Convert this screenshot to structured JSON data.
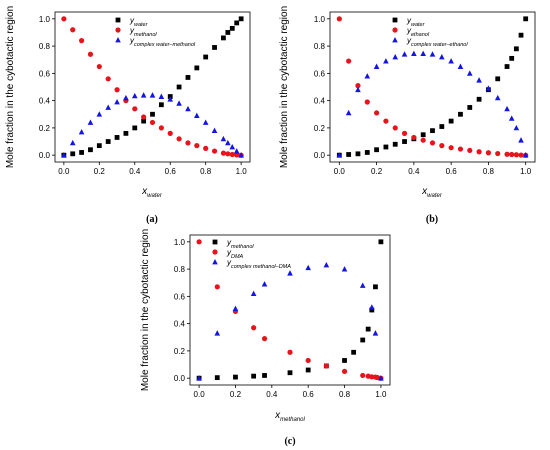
{
  "chart_data": [
    {
      "type": "scatter",
      "panel_label": "(a)",
      "ylabel": "Mole fraction in the cybotactic region",
      "xlabel": {
        "base": "x",
        "sub": "water"
      },
      "xlim": [
        -0.05,
        1.05
      ],
      "ylim": [
        -0.05,
        1.05
      ],
      "xticks": [
        0.0,
        0.2,
        0.4,
        0.6,
        0.8,
        1.0
      ],
      "yticks": [
        0.0,
        0.2,
        0.4,
        0.6,
        0.8,
        1.0
      ],
      "xtick_labels": [
        "0.0",
        "0.2",
        "0.4",
        "0.6",
        "0.8",
        "1.0"
      ],
      "ytick_labels": [
        "0.0",
        "0.2",
        "0.4",
        "0.6",
        "0.8",
        "1.0"
      ],
      "grid": false,
      "legend_placement": "top-center",
      "series": [
        {
          "base": "y",
          "sub": "water",
          "marker": "square",
          "color": "#000000",
          "x": [
            0,
            0.05,
            0.1,
            0.15,
            0.2,
            0.25,
            0.3,
            0.35,
            0.4,
            0.45,
            0.5,
            0.55,
            0.6,
            0.65,
            0.7,
            0.75,
            0.8,
            0.85,
            0.9,
            0.925,
            0.95,
            0.975,
            1.0
          ],
          "y": [
            0,
            0.01,
            0.02,
            0.04,
            0.07,
            0.1,
            0.13,
            0.16,
            0.2,
            0.25,
            0.3,
            0.37,
            0.43,
            0.5,
            0.57,
            0.64,
            0.72,
            0.79,
            0.86,
            0.9,
            0.93,
            0.97,
            1.0
          ]
        },
        {
          "base": "y",
          "sub": "methanol",
          "marker": "circle",
          "color": "#e8141b",
          "x": [
            0,
            0.05,
            0.1,
            0.15,
            0.2,
            0.25,
            0.3,
            0.35,
            0.4,
            0.45,
            0.5,
            0.55,
            0.6,
            0.65,
            0.7,
            0.75,
            0.8,
            0.85,
            0.9,
            0.925,
            0.95,
            0.975,
            1.0
          ],
          "y": [
            1.0,
            0.92,
            0.84,
            0.74,
            0.65,
            0.56,
            0.48,
            0.4,
            0.34,
            0.28,
            0.24,
            0.2,
            0.16,
            0.12,
            0.09,
            0.07,
            0.05,
            0.03,
            0.015,
            0.01,
            0.005,
            0.002,
            0.0
          ]
        },
        {
          "base": "y",
          "sub": "complex water–methanol",
          "marker": "triangle",
          "color": "#1515e3",
          "x": [
            0,
            0.05,
            0.1,
            0.15,
            0.2,
            0.25,
            0.3,
            0.35,
            0.4,
            0.45,
            0.5,
            0.55,
            0.6,
            0.65,
            0.7,
            0.75,
            0.8,
            0.85,
            0.9,
            0.925,
            0.95,
            0.975,
            1.0
          ],
          "y": [
            0,
            0.09,
            0.17,
            0.24,
            0.3,
            0.35,
            0.39,
            0.42,
            0.435,
            0.44,
            0.44,
            0.43,
            0.41,
            0.38,
            0.34,
            0.29,
            0.24,
            0.18,
            0.12,
            0.09,
            0.06,
            0.03,
            0.0
          ]
        }
      ]
    },
    {
      "type": "scatter",
      "panel_label": "(b)",
      "ylabel": "Mole fraction in the cybotactic region",
      "xlabel": {
        "base": "x",
        "sub": "water"
      },
      "xlim": [
        -0.05,
        1.05
      ],
      "ylim": [
        -0.05,
        1.05
      ],
      "xticks": [
        0.0,
        0.2,
        0.4,
        0.6,
        0.8,
        1.0
      ],
      "yticks": [
        0.0,
        0.2,
        0.4,
        0.6,
        0.8,
        1.0
      ],
      "xtick_labels": [
        "0.0",
        "0.2",
        "0.4",
        "0.6",
        "0.8",
        "1.0"
      ],
      "ytick_labels": [
        "0.0",
        "0.2",
        "0.4",
        "0.6",
        "0.8",
        "1.0"
      ],
      "grid": false,
      "legend_placement": "top-center",
      "series": [
        {
          "base": "y",
          "sub": "water",
          "marker": "square",
          "color": "#000000",
          "x": [
            0,
            0.05,
            0.1,
            0.15,
            0.2,
            0.25,
            0.3,
            0.35,
            0.4,
            0.45,
            0.5,
            0.55,
            0.6,
            0.65,
            0.7,
            0.75,
            0.8,
            0.85,
            0.9,
            0.925,
            0.95,
            0.975,
            1.0
          ],
          "y": [
            0,
            0.005,
            0.01,
            0.02,
            0.04,
            0.06,
            0.08,
            0.1,
            0.12,
            0.15,
            0.18,
            0.21,
            0.25,
            0.3,
            0.35,
            0.41,
            0.48,
            0.56,
            0.65,
            0.71,
            0.78,
            0.88,
            1.0
          ]
        },
        {
          "base": "y",
          "sub": "ethanol",
          "marker": "circle",
          "color": "#e8141b",
          "x": [
            0,
            0.05,
            0.1,
            0.15,
            0.2,
            0.25,
            0.3,
            0.35,
            0.4,
            0.45,
            0.5,
            0.55,
            0.6,
            0.65,
            0.7,
            0.75,
            0.8,
            0.85,
            0.9,
            0.925,
            0.95,
            0.975,
            1.0
          ],
          "y": [
            1.0,
            0.69,
            0.51,
            0.39,
            0.31,
            0.25,
            0.2,
            0.16,
            0.13,
            0.11,
            0.09,
            0.07,
            0.055,
            0.045,
            0.035,
            0.025,
            0.018,
            0.012,
            0.007,
            0.005,
            0.003,
            0.001,
            0.0
          ]
        },
        {
          "base": "y",
          "sub": "complex water–ethanol",
          "marker": "triangle",
          "color": "#1515e3",
          "x": [
            0,
            0.05,
            0.1,
            0.15,
            0.2,
            0.25,
            0.3,
            0.35,
            0.4,
            0.45,
            0.5,
            0.55,
            0.6,
            0.65,
            0.7,
            0.75,
            0.8,
            0.85,
            0.9,
            0.925,
            0.95,
            0.975,
            1.0
          ],
          "y": [
            0,
            0.31,
            0.48,
            0.58,
            0.65,
            0.69,
            0.72,
            0.74,
            0.745,
            0.745,
            0.74,
            0.72,
            0.69,
            0.65,
            0.6,
            0.55,
            0.49,
            0.42,
            0.34,
            0.27,
            0.2,
            0.11,
            0.0
          ]
        }
      ]
    },
    {
      "type": "scatter",
      "panel_label": "(c)",
      "ylabel": "Mole fraction in the cybotactic region",
      "xlabel": {
        "base": "x",
        "sub": "methanol"
      },
      "xlim": [
        -0.05,
        1.05
      ],
      "ylim": [
        -0.05,
        1.05
      ],
      "xticks": [
        0.0,
        0.2,
        0.4,
        0.6,
        0.8,
        1.0
      ],
      "yticks": [
        0.0,
        0.2,
        0.4,
        0.6,
        0.8,
        1.0
      ],
      "xtick_labels": [
        "0.0",
        "0.2",
        "0.4",
        "0.6",
        "0.8",
        "1.0"
      ],
      "ytick_labels": [
        "0.0",
        "0.2",
        "0.4",
        "0.6",
        "0.8",
        "1.0"
      ],
      "grid": false,
      "legend_placement": "top-left",
      "series": [
        {
          "base": "y",
          "sub": "methanol",
          "marker": "square",
          "color": "#000000",
          "x": [
            0,
            0.1,
            0.2,
            0.3,
            0.36,
            0.5,
            0.6,
            0.7,
            0.8,
            0.85,
            0.9,
            0.93,
            0.95,
            0.97,
            1.0
          ],
          "y": [
            0,
            0.004,
            0.008,
            0.015,
            0.02,
            0.04,
            0.06,
            0.09,
            0.13,
            0.19,
            0.28,
            0.36,
            0.5,
            0.67,
            1.0
          ]
        },
        {
          "base": "y",
          "sub": "DMA",
          "marker": "circle",
          "color": "#e8141b",
          "x": [
            0,
            0.1,
            0.2,
            0.3,
            0.36,
            0.5,
            0.6,
            0.7,
            0.8,
            0.9,
            0.93,
            0.95,
            0.97,
            0.98,
            1.0
          ],
          "y": [
            1.0,
            0.67,
            0.49,
            0.37,
            0.29,
            0.19,
            0.13,
            0.09,
            0.05,
            0.02,
            0.015,
            0.01,
            0.008,
            0.005,
            0.0
          ]
        },
        {
          "base": "y",
          "sub": "complex methanol–DMA",
          "marker": "triangle",
          "color": "#1515e3",
          "x": [
            0,
            0.1,
            0.2,
            0.3,
            0.36,
            0.5,
            0.6,
            0.7,
            0.8,
            0.9,
            0.95,
            0.97,
            1.0
          ],
          "y": [
            0,
            0.33,
            0.51,
            0.62,
            0.69,
            0.77,
            0.81,
            0.83,
            0.8,
            0.68,
            0.52,
            0.33,
            0.0
          ]
        }
      ]
    }
  ]
}
